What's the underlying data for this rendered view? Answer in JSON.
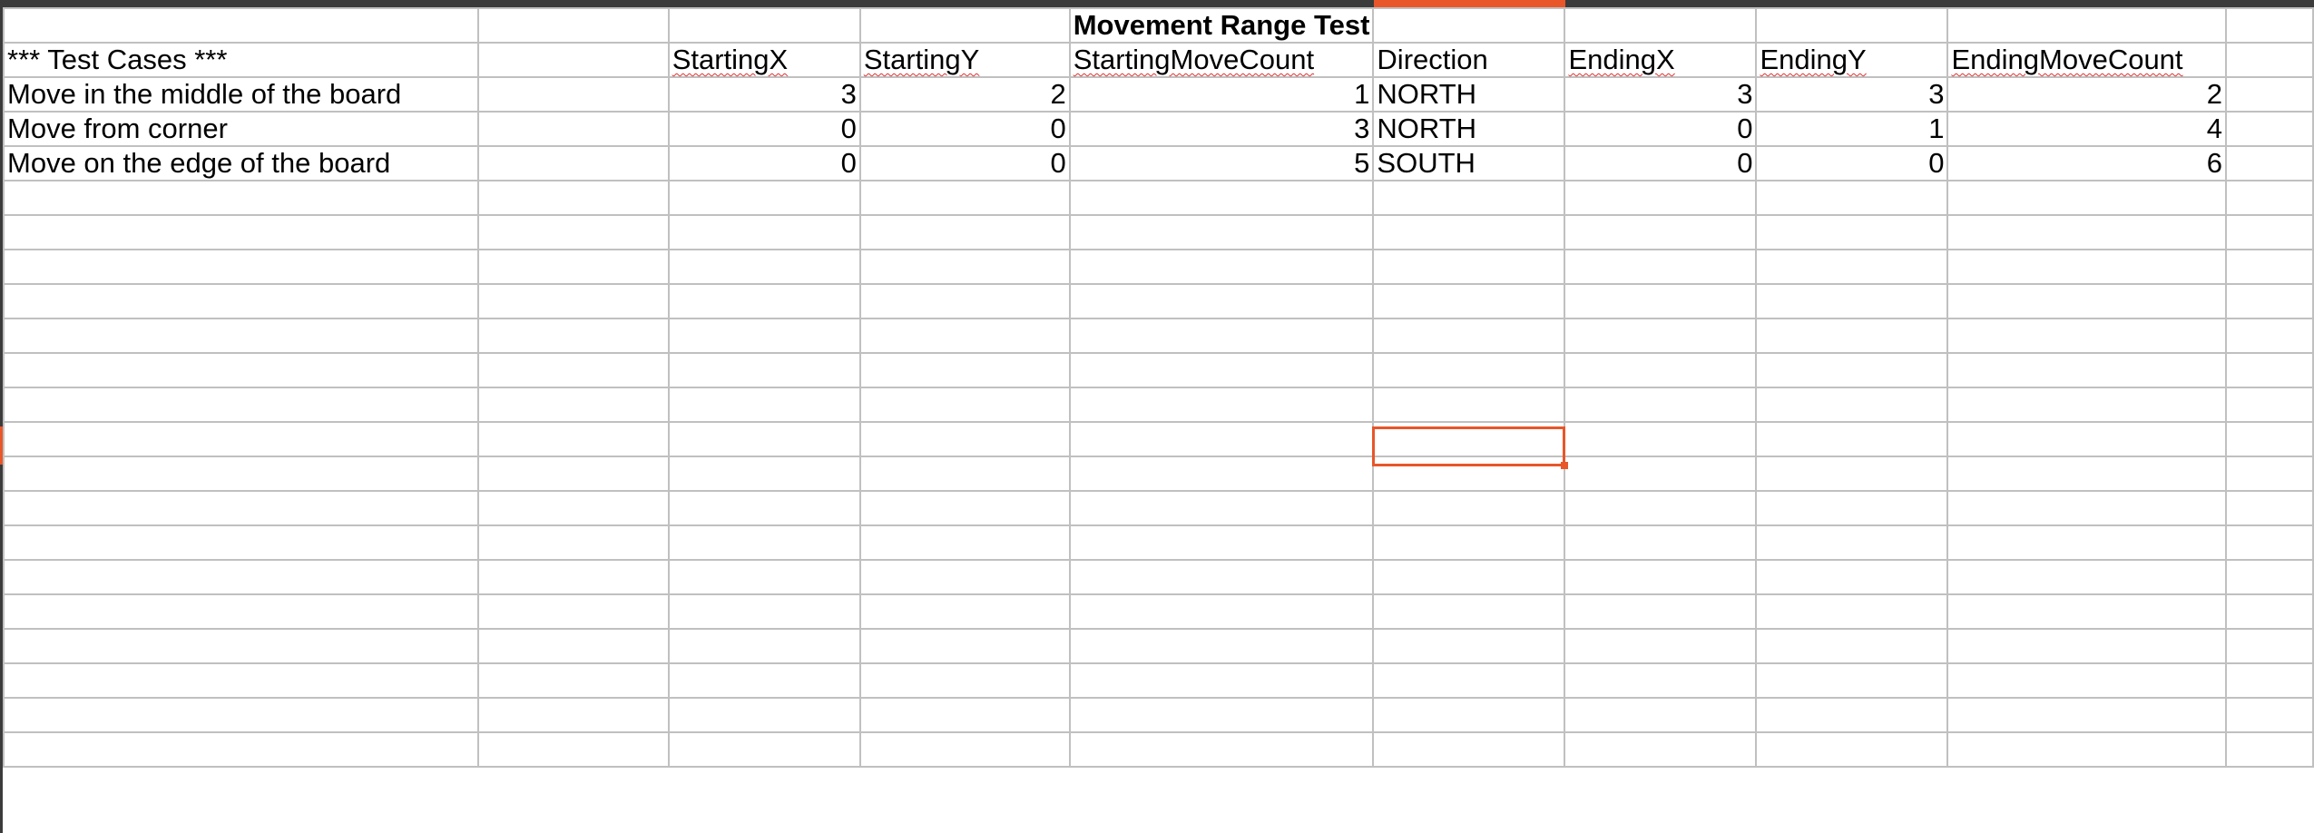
{
  "sheet": {
    "title": "Movement Range Test",
    "section_label": "*** Test Cases ***",
    "headers": [
      "StartingX",
      "StartingY",
      "StartingMoveCount",
      "Direction",
      "EndingX",
      "EndingY",
      "EndingMoveCount"
    ],
    "rows": [
      {
        "name": "Move in the middle of the board",
        "starting_x": "3",
        "starting_y": "2",
        "starting_move_count": "1",
        "direction": "NORTH",
        "ending_x": "3",
        "ending_y": "3",
        "ending_move_count": "2"
      },
      {
        "name": "Move from corner",
        "starting_x": "0",
        "starting_y": "0",
        "starting_move_count": "3",
        "direction": "NORTH",
        "ending_x": "0",
        "ending_y": "1",
        "ending_move_count": "4"
      },
      {
        "name": "Move on the edge of the board",
        "starting_x": "0",
        "starting_y": "0",
        "starting_move_count": "5",
        "direction": "SOUTH",
        "ending_x": "0",
        "ending_y": "0",
        "ending_move_count": "6"
      }
    ]
  },
  "colors": {
    "accent": "#e8562a",
    "gridline": "#c0c0c0",
    "spellcheck": "#e03030"
  }
}
